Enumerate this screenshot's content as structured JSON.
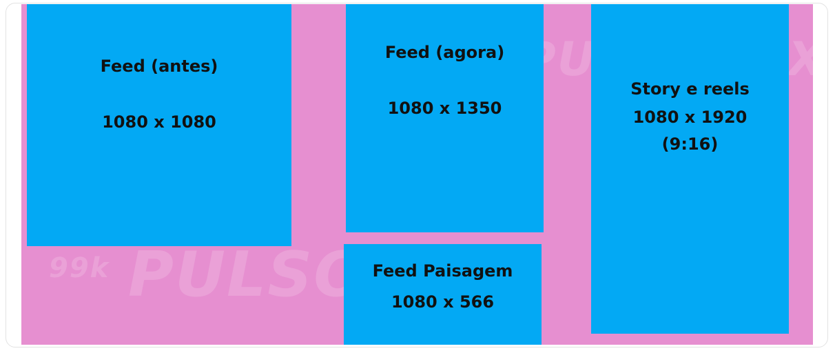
{
  "boxes": [
    {
      "lines": [
        "Feed (antes)",
        "1080 x 1080"
      ]
    },
    {
      "lines": [
        "Feed (agora)",
        "1080 x 1350"
      ]
    },
    {
      "lines": [
        "Feed Paisagem",
        "1080 x 566"
      ]
    },
    {
      "lines": [
        "Story e reels",
        "1080 x 1920",
        "(9:16)"
      ]
    }
  ],
  "watermark": {
    "badge": "99k",
    "brand": "PULSOMAX"
  }
}
